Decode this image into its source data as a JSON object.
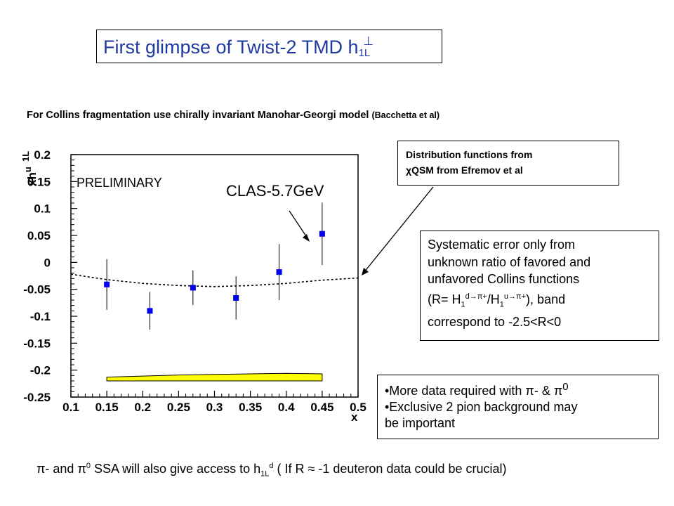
{
  "slide": {
    "title": "First glimpse of Twist-2 TMD h",
    "title_sub": "1L",
    "title_sup": "⊥",
    "subtitle": "For Collins fragmentation use chirally invariant Manohar-Georgi model",
    "subtitle_small": "(Bacchetta et al)",
    "dist_box_line1": "Distribution functions from",
    "dist_box_line2": "QSM from Efremov et al",
    "dist_box_chi": "χ",
    "sys_box": {
      "l1": "Systematic error only from",
      "l2": "unknown ratio of favored and",
      "l3": "unfavored Collins functions",
      "l4a": "(R= H",
      "l4_sub1": "1",
      "l4_sup1": "d→π+",
      "l4b": "/H",
      "l4_sub2": "1",
      "l4_sup2": "u→π+",
      "l4c": "), band",
      "l5": "correspond to -2.5<R<0"
    },
    "more_box": {
      "b1": "•More data required with π- & π",
      "b1_sup": "0",
      "b2": "•Exclusive 2 pion background may",
      "b3": "be important"
    },
    "footer": {
      "a": "π- and π",
      "a_sup": "0",
      "b": " SSA will also give access to h",
      "b_sub": "1L",
      "b_sup": "d",
      "c": " ( If R ≈ -1 deuteron data could be crucial)"
    }
  },
  "chart_data": {
    "type": "scatter",
    "xlabel": "x",
    "ylabel_main": "xh",
    "ylabel_sup": "u",
    "ylabel_sub": "1L",
    "xlim": [
      0.1,
      0.5
    ],
    "ylim": [
      -0.25,
      0.2
    ],
    "xticks": [
      "0.1",
      "0.15",
      "0.2",
      "0.25",
      "0.3",
      "0.35",
      "0.4",
      "0.45",
      "0.5"
    ],
    "yticks": [
      "0.2",
      "0.15",
      "0.1",
      "0.05",
      "0",
      "-0.05",
      "-0.1",
      "-0.15",
      "-0.2",
      "-0.25"
    ],
    "annotations": {
      "preliminary": "PRELIMINARY",
      "clas": "CLAS-5.7GeV"
    },
    "series": [
      {
        "marker_color": "#0000ee",
        "x": [
          0.15,
          0.21,
          0.27,
          0.33,
          0.39,
          0.45
        ],
        "y": [
          -0.041,
          -0.09,
          -0.047,
          -0.066,
          -0.018,
          0.053
        ],
        "yerr": [
          0.047,
          0.035,
          0.032,
          0.04,
          0.052,
          0.058
        ]
      }
    ],
    "curve": {
      "style": "dashed",
      "x": [
        0.1,
        0.15,
        0.2,
        0.25,
        0.3,
        0.35,
        0.4,
        0.45,
        0.5
      ],
      "y": [
        -0.022,
        -0.032,
        -0.039,
        -0.043,
        -0.045,
        -0.043,
        -0.039,
        -0.033,
        -0.029
      ]
    },
    "band": {
      "color": "#ffff00",
      "x": [
        0.15,
        0.2,
        0.25,
        0.3,
        0.35,
        0.4,
        0.45
      ],
      "ylow": [
        -0.22,
        -0.22,
        -0.22,
        -0.22,
        -0.22,
        -0.22,
        -0.22
      ],
      "yhigh": [
        -0.213,
        -0.211,
        -0.209,
        -0.208,
        -0.207,
        -0.206,
        -0.207
      ]
    }
  }
}
